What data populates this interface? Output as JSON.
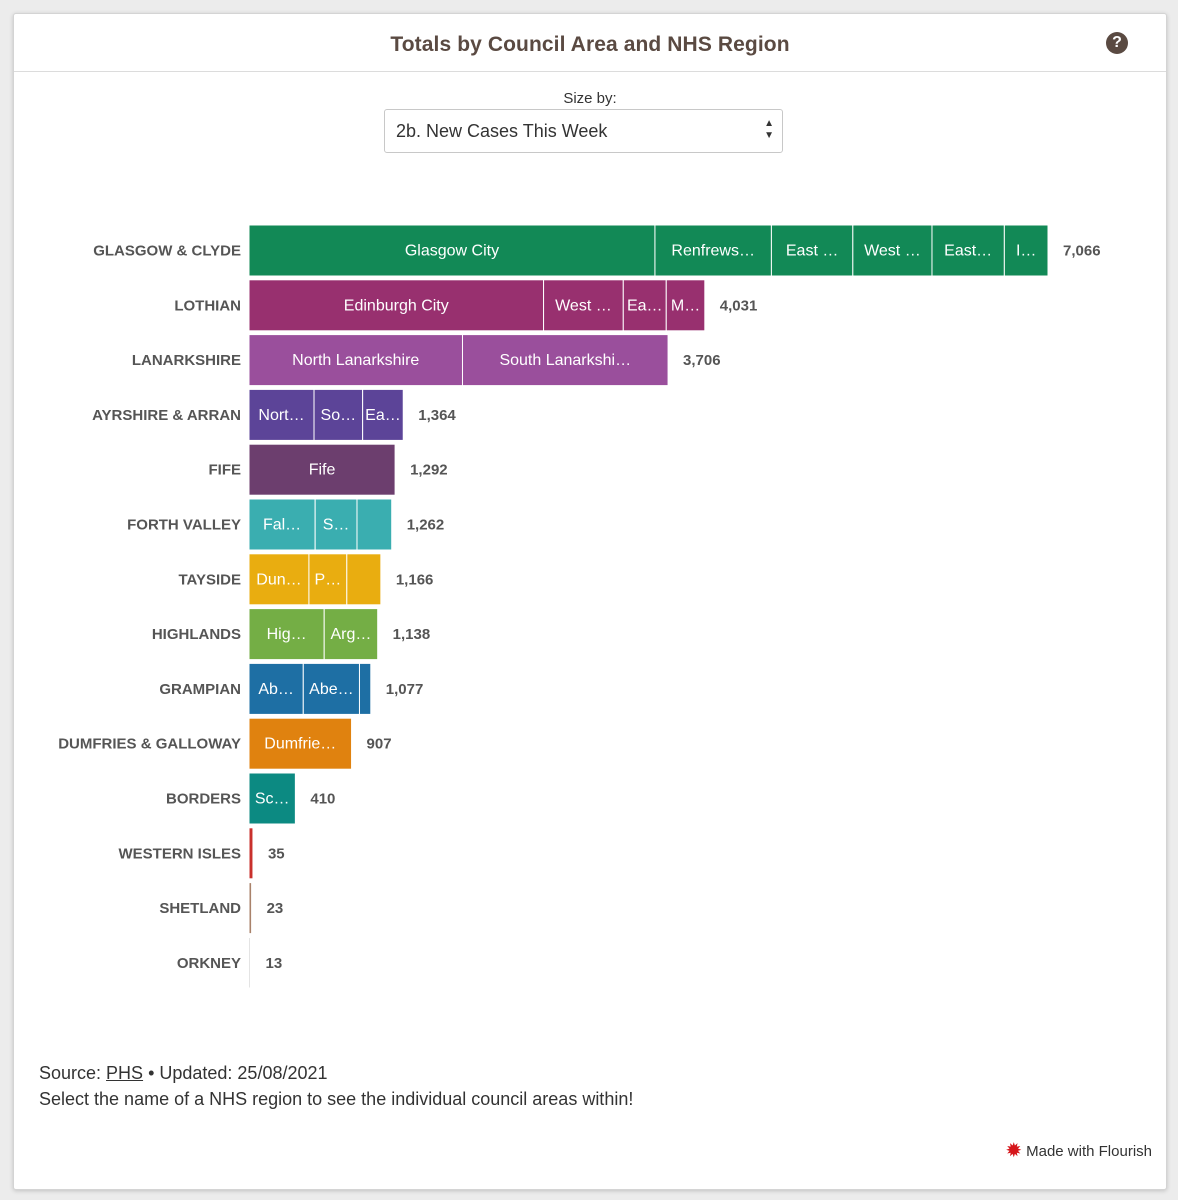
{
  "header": {
    "title": "Totals by Council Area and NHS Region",
    "help_icon": "question-circle-icon",
    "help_glyph": "?"
  },
  "controls": {
    "size_by_label": "Size by:",
    "size_by_value": "2b. New Cases This Week"
  },
  "chart_data": {
    "type": "bar",
    "orientation": "horizontal",
    "stacked": true,
    "xlim": [
      0,
      7066
    ],
    "categories": [
      "GLASGOW & CLYDE",
      "LOTHIAN",
      "LANARKSHIRE",
      "AYRSHIRE & ARRAN",
      "FIFE",
      "FORTH VALLEY",
      "TAYSIDE",
      "HIGHLANDS",
      "GRAMPIAN",
      "DUMFRIES & GALLOWAY",
      "BORDERS",
      "WESTERN ISLES",
      "SHETLAND",
      "ORKNEY"
    ],
    "totals": [
      7066,
      4031,
      3706,
      1364,
      1292,
      1262,
      1166,
      1138,
      1077,
      907,
      410,
      35,
      23,
      13
    ],
    "total_labels": [
      "7,066",
      "4,031",
      "3,706",
      "1,364",
      "1,292",
      "1,262",
      "1,166",
      "1,138",
      "1,077",
      "907",
      "410",
      "35",
      "23",
      "13"
    ],
    "colors": [
      "#128956",
      "#98306f",
      "#9a4f9c",
      "#5c4498",
      "#6c3e6e",
      "#3aaeb0",
      "#e9ad10",
      "#74ae45",
      "#1e6fa4",
      "#e0820f",
      "#0c8a82",
      "#c9302c",
      "#a9826a",
      "#c9c9c9"
    ],
    "segments": [
      [
        {
          "label": "Glasgow City",
          "value": 3590
        },
        {
          "label": "Renfrews…",
          "value": 1030
        },
        {
          "label": "East …",
          "value": 720
        },
        {
          "label": "West …",
          "value": 700
        },
        {
          "label": "East…",
          "value": 640
        },
        {
          "label": "I…",
          "value": 386
        }
      ],
      [
        {
          "label": "Edinburgh City",
          "value": 2605
        },
        {
          "label": "West …",
          "value": 705
        },
        {
          "label": "Ea…",
          "value": 380
        },
        {
          "label": "M…",
          "value": 341
        }
      ],
      [
        {
          "label": "North Lanarkshire",
          "value": 1888
        },
        {
          "label": "South Lanarkshi…",
          "value": 1818
        }
      ],
      [
        {
          "label": "Nort…",
          "value": 575
        },
        {
          "label": "So…",
          "value": 430
        },
        {
          "label": "Ea…",
          "value": 359
        }
      ],
      [
        {
          "label": "Fife",
          "value": 1292
        }
      ],
      [
        {
          "label": "Fal…",
          "value": 585
        },
        {
          "label": "S…",
          "value": 370
        },
        {
          "label": "",
          "value": 307
        }
      ],
      [
        {
          "label": "Dun…",
          "value": 530
        },
        {
          "label": "P…",
          "value": 335
        },
        {
          "label": "",
          "value": 301
        }
      ],
      [
        {
          "label": "Hig…",
          "value": 665
        },
        {
          "label": "Arg…",
          "value": 473
        }
      ],
      [
        {
          "label": "Ab…",
          "value": 480
        },
        {
          "label": "Abe…",
          "value": 497
        },
        {
          "label": "",
          "value": 100
        }
      ],
      [
        {
          "label": "Dumfrie…",
          "value": 907
        }
      ],
      [
        {
          "label": "Sc…",
          "value": 410
        }
      ],
      [
        {
          "label": "",
          "value": 35
        }
      ],
      [
        {
          "label": "",
          "value": 23
        }
      ],
      [
        {
          "label": "",
          "value": 13
        }
      ]
    ]
  },
  "footer": {
    "source_prefix": "Source: ",
    "source_link": "PHS",
    "source_suffix": " • Updated: 25/08/2021",
    "note": "Select the name of a NHS region to see the individual council areas within!",
    "made_with": "Made with Flourish",
    "flourish_icon": "flourish-star-icon"
  }
}
